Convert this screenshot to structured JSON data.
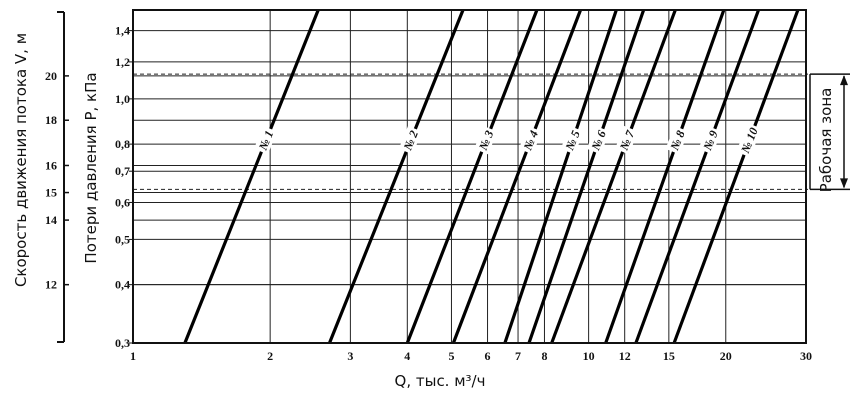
{
  "chart_data": {
    "type": "line",
    "x_scale": "log",
    "y_scale": "log",
    "xlim": [
      1,
      30
    ],
    "ylim": [
      0.3,
      1.55
    ],
    "xlabel": "Q, тыс. м³/ч",
    "ylabel": "Потери давления P, кПа",
    "y2label": "Скорость движения потока V, м",
    "x_tick_labels": [
      "1",
      "2",
      "3",
      "4",
      "5",
      "6",
      "7",
      "8",
      "10",
      "12",
      "15",
      "20",
      "30"
    ],
    "y_tick_labels": [
      "0,3",
      "0,4",
      "0,5",
      "0,6",
      "0,7",
      "0,8",
      "1,0",
      "1,2",
      "1,4"
    ],
    "v_tick_labels": [
      "12",
      "14",
      "15",
      "16",
      "18",
      "20"
    ],
    "v_scale": [
      {
        "label": "12",
        "p": 0.4
      },
      {
        "label": "14",
        "p": 0.55
      },
      {
        "label": "15",
        "p": 0.63
      },
      {
        "label": "16",
        "p": 0.72
      },
      {
        "label": "18",
        "p": 0.9
      },
      {
        "label": "20",
        "p": 1.12
      }
    ],
    "working_zone": {
      "label": "Рабочая зона",
      "p_min": 0.64,
      "p_max": 1.13
    },
    "grid": true,
    "series": [
      {
        "name": "№ 1",
        "x": [
          1.3,
          2.55
        ],
        "y": [
          0.3,
          1.55
        ]
      },
      {
        "name": "№ 2",
        "x": [
          2.7,
          5.3
        ],
        "y": [
          0.3,
          1.55
        ]
      },
      {
        "name": "№ 3",
        "x": [
          4.0,
          7.7
        ],
        "y": [
          0.3,
          1.55
        ]
      },
      {
        "name": "№ 4",
        "x": [
          5.05,
          9.6
        ],
        "y": [
          0.3,
          1.55
        ]
      },
      {
        "name": "№ 5",
        "x": [
          6.55,
          11.5
        ],
        "y": [
          0.3,
          1.55
        ]
      },
      {
        "name": "№ 6",
        "x": [
          7.4,
          13.2
        ],
        "y": [
          0.3,
          1.55
        ]
      },
      {
        "name": "№ 7",
        "x": [
          8.3,
          15.5
        ],
        "y": [
          0.3,
          1.55
        ]
      },
      {
        "name": "№ 8",
        "x": [
          10.9,
          19.8
        ],
        "y": [
          0.3,
          1.55
        ]
      },
      {
        "name": "№ 9",
        "x": [
          12.7,
          23.6
        ],
        "y": [
          0.3,
          1.55
        ]
      },
      {
        "name": "№ 10",
        "x": [
          15.4,
          28.8
        ],
        "y": [
          0.3,
          1.55
        ]
      }
    ]
  }
}
